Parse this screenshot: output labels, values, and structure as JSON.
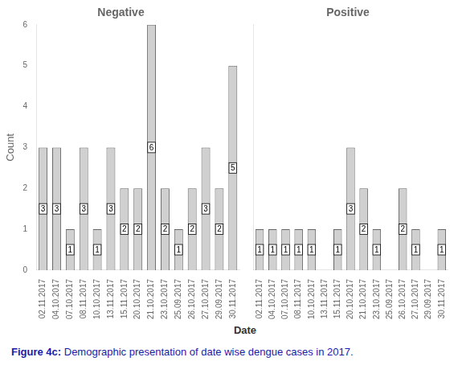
{
  "chart_data": [
    {
      "type": "bar",
      "title": "Negative",
      "categories": [
        "02.11.2017",
        "04.10.2017",
        "07.10.2017",
        "08.11.2017",
        "10.10.2017",
        "13.11.2017",
        "15.11.2017",
        "20.10.2017",
        "21.10.2017",
        "23.10.2017",
        "25.09.2017",
        "26.10.2017",
        "27.10.2017",
        "29.09.2017",
        "30.11.2017"
      ],
      "values": [
        3,
        3,
        1,
        3,
        1,
        3,
        2,
        2,
        6,
        2,
        1,
        2,
        3,
        2,
        5
      ],
      "color": "#d0d0d0",
      "ylim": [
        0,
        6
      ],
      "yticks": [
        0,
        1,
        2,
        3,
        4,
        5,
        6
      ],
      "ylabel": "Count",
      "xlabel": "Date",
      "grid": false,
      "data_labels": true,
      "annotations": [
        "Figure 4c:",
        "Demographic presentation of date wise dengue cases in 2017."
      ]
    },
    {
      "type": "bar",
      "title": "Positive",
      "categories": [
        "02.11.2017",
        "04.10.2017",
        "07.10.2017",
        "08.11.2017",
        "10.10.2017",
        "13.11.2017",
        "15.11.2017",
        "20.10.2017",
        "21.10.2017",
        "23.10.2017",
        "25.09.2017",
        "26.10.2017",
        "27.10.2017",
        "29.09.2017",
        "30.11.2017"
      ],
      "values": [
        1,
        1,
        1,
        1,
        1,
        0,
        1,
        3,
        2,
        1,
        0,
        2,
        1,
        0,
        1
      ],
      "color": "#d0d0d0",
      "ylim": [
        0,
        6
      ],
      "yticks": [
        0,
        1,
        2,
        3,
        4,
        5,
        6
      ],
      "grid": false,
      "data_labels": true,
      "tick_labels": "x"
    }
  ]
}
